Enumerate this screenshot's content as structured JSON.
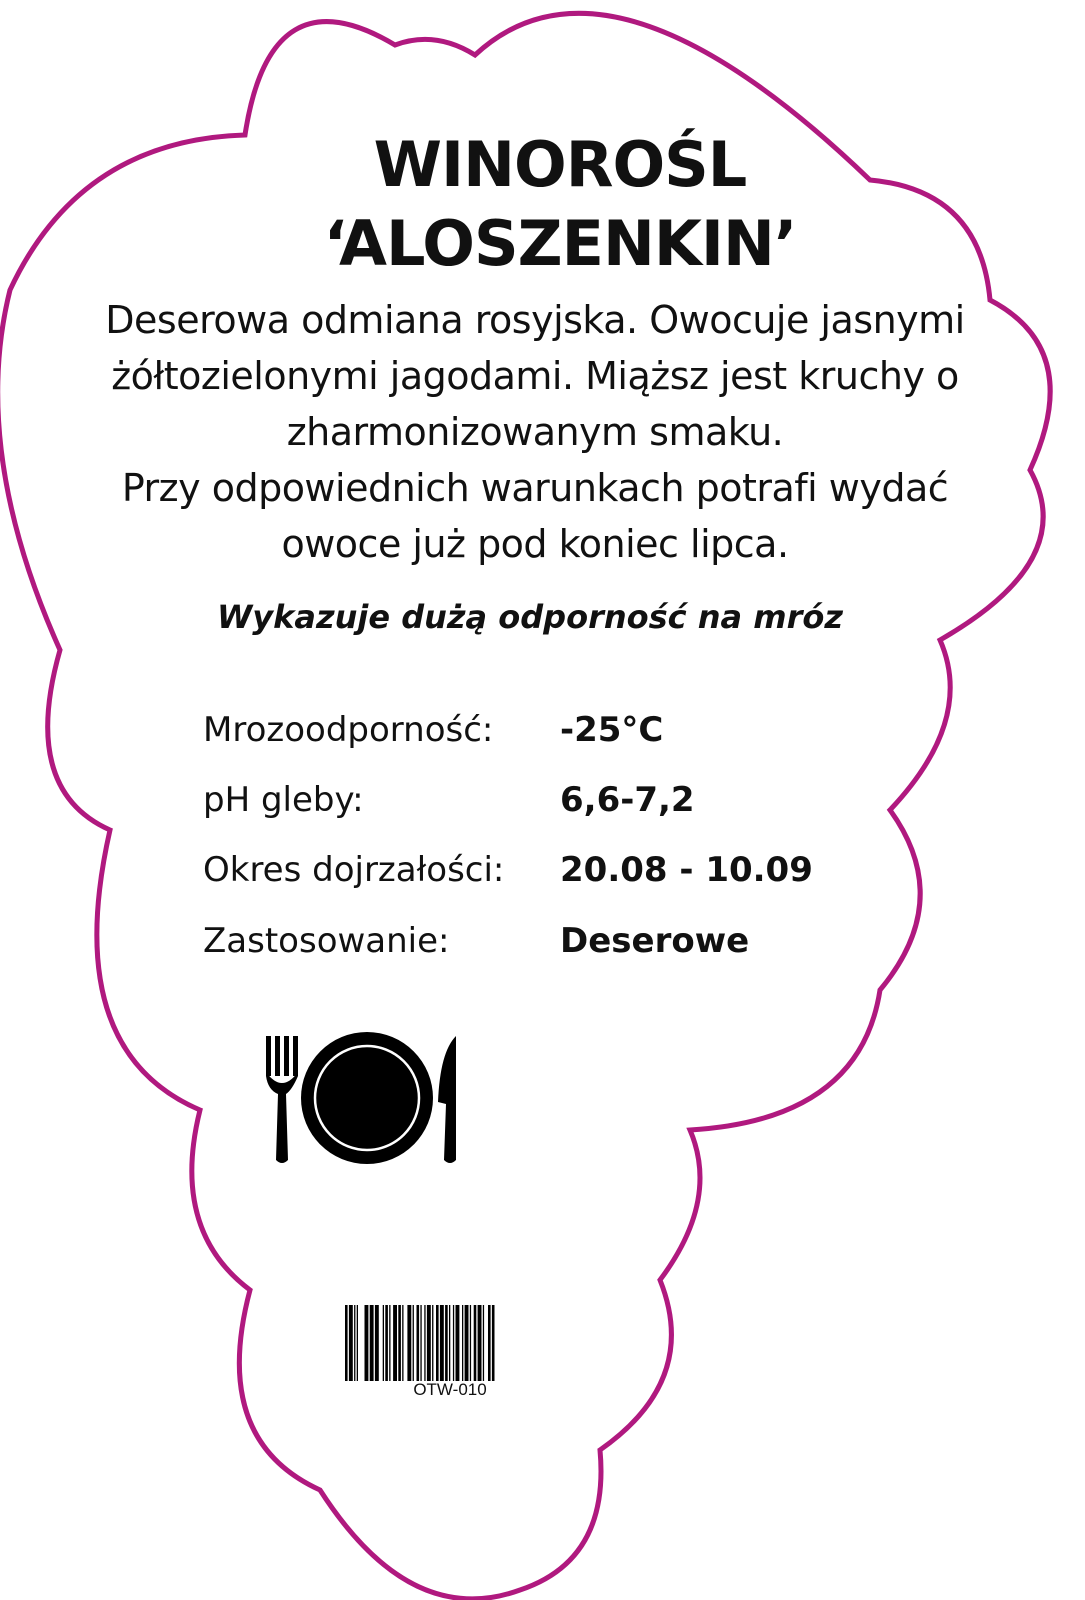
{
  "title": {
    "line1": "WINOROŚL",
    "line2": "‘ALOSZENKIN’"
  },
  "description": [
    "Deserowa odmiana rosyjska. Owocuje jasnymi",
    "żółtozielonymi jagodami. Miąższ jest kruchy o",
    "zharmonizowanym smaku.",
    "Przy odpowiednich warunkach potrafi wydać",
    "owoce już pod koniec lipca."
  ],
  "note": "Wykazuje dużą odporność na mróz",
  "specs": [
    {
      "label": "Mrozoodporność:",
      "value": "-25°C"
    },
    {
      "label": "pH gleby:",
      "value": "6,6-7,2"
    },
    {
      "label": "Okres dojrzałości:",
      "value": "20.08 - 10.09"
    },
    {
      "label": "Zastosowanie:",
      "value": "Deserowe"
    }
  ],
  "icon": "fork-plate-knife-icon",
  "barcode": {
    "code": "OTW-010"
  },
  "colors": {
    "outline": "#b0197f",
    "text": "#111111"
  }
}
